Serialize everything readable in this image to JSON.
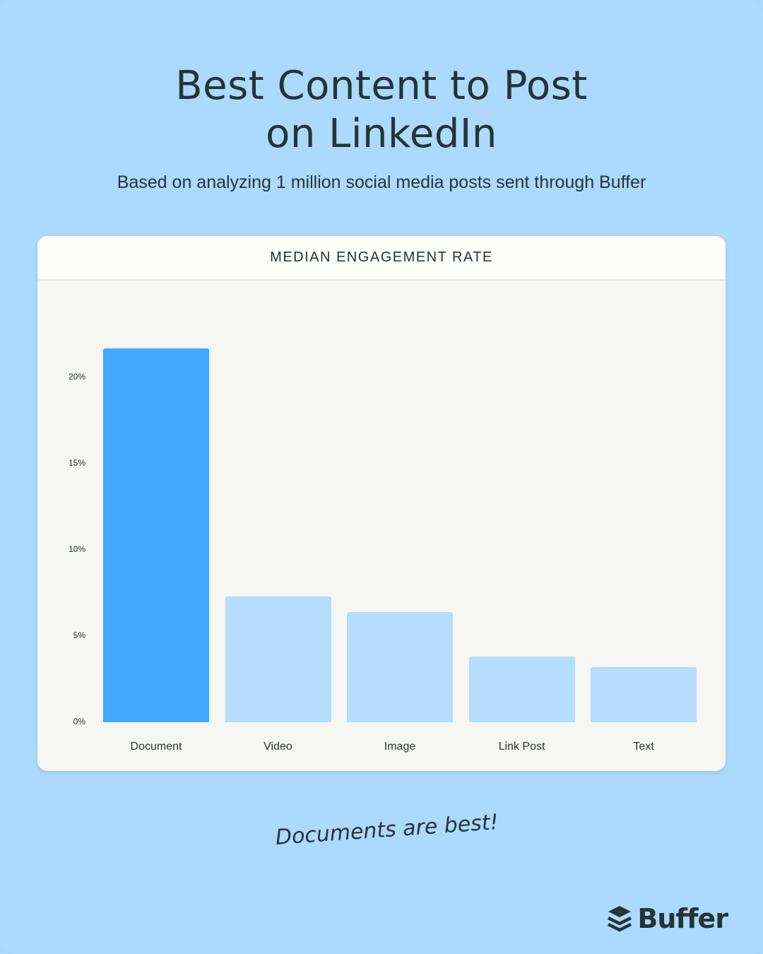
{
  "header": {
    "title_line1": "Best Content to Post",
    "title_line2": "on LinkedIn",
    "subtitle": "Based on analyzing 1 million social media posts sent through Buffer"
  },
  "card": {
    "title": "MEDIAN ENGAGEMENT RATE"
  },
  "footer": {
    "tagline": "Documents are best!",
    "brand": "Buffer",
    "brand_icon": "buffer-layers-icon"
  },
  "colors": {
    "background": "#acd9ff",
    "highlight_bar": "#42a8ff",
    "default_bar": "#b5ddfd",
    "text": "#243533",
    "card": "#f6f6f2"
  },
  "chart_data": {
    "type": "bar",
    "title": "MEDIAN ENGAGEMENT RATE",
    "categories": [
      "Document",
      "Video",
      "Image",
      "Link Post",
      "Text"
    ],
    "values": [
      21.7,
      7.3,
      6.4,
      3.8,
      3.2
    ],
    "unit": "%",
    "highlight": "Document",
    "xlabel": "",
    "ylabel": "",
    "ylim": [
      0,
      22
    ],
    "yticks": [
      "0%",
      "5%",
      "10%",
      "15%",
      "20%"
    ],
    "ytick_values": [
      0,
      5,
      10,
      15,
      20
    ],
    "grid": false,
    "legend": false
  }
}
